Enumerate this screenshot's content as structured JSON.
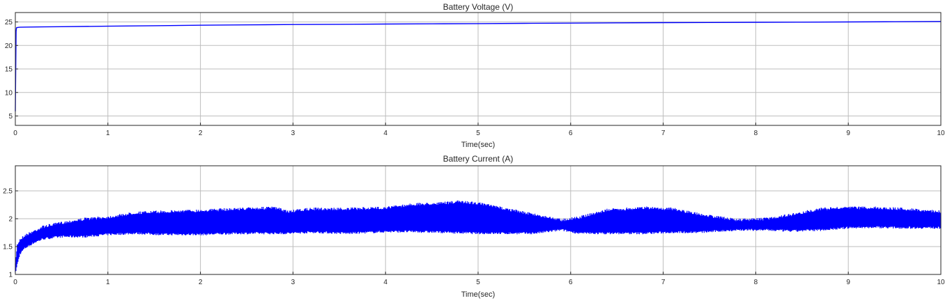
{
  "chart_data": [
    {
      "type": "line",
      "title": "Battery Voltage (V)",
      "xlabel": "Time(sec)",
      "ylabel": "",
      "xlim": [
        0,
        10
      ],
      "ylim": [
        3,
        27
      ],
      "xticks": [
        0,
        1,
        2,
        3,
        4,
        5,
        6,
        7,
        8,
        9,
        10
      ],
      "yticks": [
        5,
        10,
        15,
        20,
        25
      ],
      "grid": true,
      "series": [
        {
          "color": "#0000ff",
          "x": [
            0,
            0.004,
            0.008,
            0.012,
            0.016,
            0.02,
            0.03,
            0.05,
            0.1,
            0.3,
            0.5,
            1,
            1.5,
            2,
            2.5,
            3,
            3.5,
            4,
            4.5,
            5,
            5.5,
            6,
            6.5,
            7,
            7.5,
            8,
            8.5,
            9,
            9.5,
            10
          ],
          "y": [
            6,
            14,
            23,
            23.7,
            23.8,
            23.8,
            23.85,
            23.88,
            23.9,
            23.95,
            24.0,
            24.1,
            24.2,
            24.3,
            24.38,
            24.45,
            24.5,
            24.55,
            24.6,
            24.65,
            24.7,
            24.75,
            24.8,
            24.85,
            24.88,
            24.92,
            24.96,
            25.0,
            25.05,
            25.1
          ]
        }
      ]
    },
    {
      "type": "line",
      "title": "Battery Current (A)",
      "xlabel": "Time(sec)",
      "ylabel": "",
      "xlim": [
        0,
        10
      ],
      "ylim": [
        1,
        2.95
      ],
      "xticks": [
        0,
        1,
        2,
        3,
        4,
        5,
        6,
        7,
        8,
        9,
        10
      ],
      "yticks": [
        1,
        1.5,
        2,
        2.5
      ],
      "grid": true,
      "series": [
        {
          "color": "#0000ff",
          "x": [
            0,
            0.02,
            0.05,
            0.1,
            0.2,
            0.3,
            0.5,
            0.75,
            1,
            1.3,
            1.6,
            2,
            2.4,
            2.8,
            2.95,
            3.2,
            3.6,
            4,
            4.3,
            4.6,
            4.8,
            5,
            5.3,
            5.6,
            5.9,
            6.1,
            6.4,
            6.8,
            7.1,
            7.4,
            7.8,
            8.1,
            8.4,
            8.7,
            9,
            9.3,
            9.6,
            10
          ],
          "upper": [
            1.2,
            1.55,
            1.65,
            1.72,
            1.8,
            1.88,
            1.95,
            2.02,
            2.05,
            2.13,
            2.15,
            2.17,
            2.2,
            2.22,
            2.15,
            2.2,
            2.2,
            2.22,
            2.28,
            2.3,
            2.33,
            2.3,
            2.2,
            2.1,
            2.0,
            2.05,
            2.18,
            2.22,
            2.2,
            2.1,
            2.0,
            2.02,
            2.1,
            2.2,
            2.22,
            2.22,
            2.2,
            2.15
          ],
          "lower": [
            1.0,
            1.15,
            1.35,
            1.45,
            1.55,
            1.62,
            1.66,
            1.66,
            1.7,
            1.72,
            1.7,
            1.7,
            1.72,
            1.72,
            1.72,
            1.74,
            1.72,
            1.75,
            1.75,
            1.74,
            1.73,
            1.72,
            1.72,
            1.72,
            1.78,
            1.72,
            1.72,
            1.72,
            1.74,
            1.74,
            1.78,
            1.78,
            1.76,
            1.78,
            1.82,
            1.83,
            1.82,
            1.82
          ]
        }
      ]
    }
  ]
}
